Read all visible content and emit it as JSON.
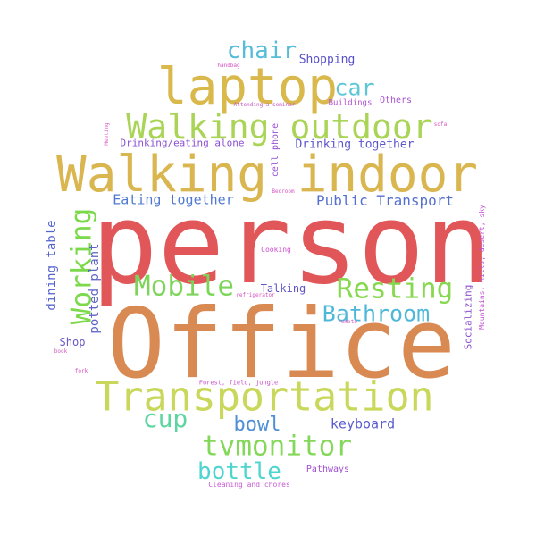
{
  "words": [
    {
      "text": "person",
      "color": "#e15759"
    },
    {
      "text": "Office",
      "color": "#d98952"
    },
    {
      "text": "Walking indoor",
      "color": "#d9b64f"
    },
    {
      "text": "laptop",
      "color": "#d9b84c"
    },
    {
      "text": "Transportation",
      "color": "#c9d75a"
    },
    {
      "text": "Walking outdoor",
      "color": "#a9d455"
    },
    {
      "text": "Resting",
      "color": "#86d84f"
    },
    {
      "text": "Mobile",
      "color": "#7cd559"
    },
    {
      "text": "Working",
      "color": "#7dd94c"
    },
    {
      "text": "tvmonitor",
      "color": "#84d859"
    },
    {
      "text": "cup",
      "color": "#5dd5a0"
    },
    {
      "text": "bottle",
      "color": "#4fd5d0"
    },
    {
      "text": "chair",
      "color": "#55bdd8"
    },
    {
      "text": "car",
      "color": "#5ec7d6"
    },
    {
      "text": "Bathroom",
      "color": "#4fb8d9"
    },
    {
      "text": "bowl",
      "color": "#4f8fd6"
    },
    {
      "text": "Public Transport",
      "color": "#5570cf"
    },
    {
      "text": "Eating together",
      "color": "#4f79d1"
    },
    {
      "text": "keyboard",
      "color": "#5a5ccf"
    },
    {
      "text": "dining table",
      "color": "#5563cd"
    },
    {
      "text": "potted plant",
      "color": "#6164c7"
    },
    {
      "text": "Drinking together",
      "color": "#5c55cb"
    },
    {
      "text": "Shopping",
      "color": "#5a50c9"
    },
    {
      "text": "Talking",
      "color": "#5e55c5"
    },
    {
      "text": "Shop",
      "color": "#6a55c9"
    },
    {
      "text": "Drinking/eating alone",
      "color": "#8a4fd0"
    },
    {
      "text": "Socializing",
      "color": "#8a4fcf"
    },
    {
      "text": "cell phone",
      "color": "#9a55d4"
    },
    {
      "text": "Pathways",
      "color": "#a050cf"
    },
    {
      "text": "Others",
      "color": "#a856d0"
    },
    {
      "text": "Buildings",
      "color": "#b052d1"
    },
    {
      "text": "Mountains, hills, desert, sky",
      "color": "#c04fd0"
    },
    {
      "text": "Cleaning and chores",
      "color": "#c85bd6"
    },
    {
      "text": "Cooking",
      "color": "#cf4fcf"
    },
    {
      "text": "Forest, field, jungle",
      "color": "#c94fc9"
    },
    {
      "text": "Attending a seminar",
      "color": "#c455c0"
    },
    {
      "text": "Bedroom",
      "color": "#d455c4"
    },
    {
      "text": "handbag",
      "color": "#d84fc0"
    },
    {
      "text": "Meeting",
      "color": "#d85bc4"
    },
    {
      "text": "sofa",
      "color": "#d455bf"
    },
    {
      "text": "refrigerator",
      "color": "#d84fbf"
    },
    {
      "text": "remote",
      "color": "#d455bb"
    },
    {
      "text": "book",
      "color": "#d45bbb"
    },
    {
      "text": "fork",
      "color": "#d94fbe"
    }
  ]
}
